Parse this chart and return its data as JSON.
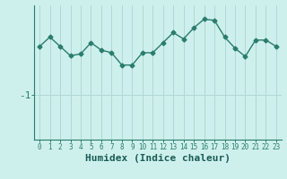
{
  "x": [
    0,
    1,
    2,
    3,
    4,
    5,
    6,
    7,
    8,
    9,
    10,
    11,
    12,
    13,
    14,
    15,
    16,
    17,
    18,
    19,
    20,
    21,
    22,
    23
  ],
  "y": [
    0.3,
    0.55,
    0.3,
    0.05,
    0.1,
    0.4,
    0.2,
    0.13,
    -0.2,
    -0.2,
    0.13,
    0.13,
    0.4,
    0.67,
    0.5,
    0.8,
    1.03,
    1.0,
    0.55,
    0.25,
    0.03,
    0.47,
    0.47,
    0.3
  ],
  "line_color": "#2a7d6b",
  "marker": "D",
  "marker_size": 2.5,
  "bg_color": "#cef0ec",
  "grid_color": "#b0d8d4",
  "ytick_label": "-1",
  "ytick_value": -1.0,
  "xlabel": "Humidex (Indice chaleur)",
  "xlabel_color": "#1a5c55",
  "xlabel_fontsize": 8,
  "axis_color": "#2a7d6b",
  "ymin": -2.2,
  "ymax": 1.4,
  "xmin": -0.5,
  "xmax": 23.5
}
